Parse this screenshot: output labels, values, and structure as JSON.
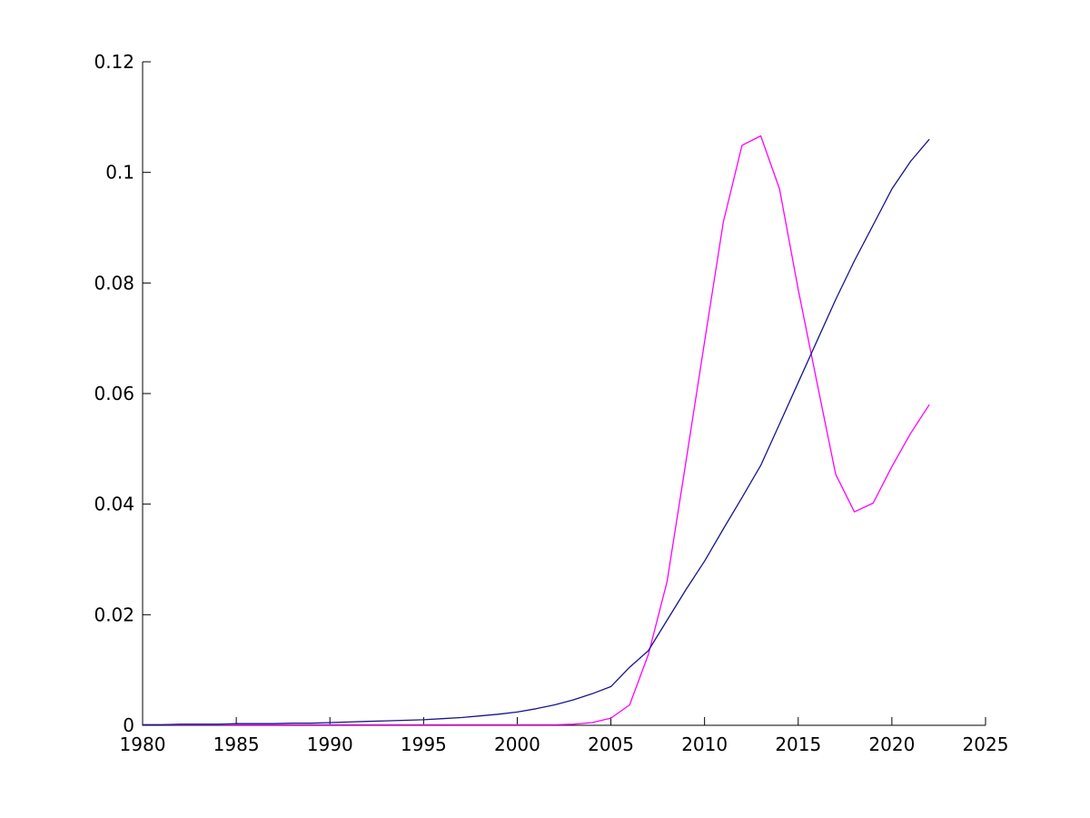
{
  "chart_data": {
    "type": "line",
    "title": "",
    "xlabel": "",
    "ylabel": "",
    "xlim": [
      1980,
      2025
    ],
    "ylim": [
      0,
      0.12
    ],
    "grid": false,
    "legend": "none",
    "box": "off",
    "axis_color": "#000000",
    "background_color": "#ffffff",
    "x_ticks": [
      1980,
      1985,
      1990,
      1995,
      2000,
      2005,
      2010,
      2015,
      2020,
      2025
    ],
    "x_tick_labels": [
      "1980",
      "1985",
      "1990",
      "1995",
      "2000",
      "2005",
      "2010",
      "2015",
      "2020",
      "2025"
    ],
    "y_ticks": [
      0,
      0.02,
      0.04,
      0.06,
      0.08,
      0.1,
      0.12
    ],
    "y_tick_labels": [
      "0",
      "0.02",
      "0.04",
      "0.06",
      "0.08",
      "0.1",
      "0.12"
    ],
    "x": [
      1980,
      1981,
      1982,
      1983,
      1984,
      1985,
      1986,
      1987,
      1988,
      1989,
      1990,
      1991,
      1992,
      1993,
      1994,
      1995,
      1996,
      1997,
      1998,
      1999,
      2000,
      2001,
      2002,
      2003,
      2004,
      2005,
      2006,
      2007,
      2008,
      2009,
      2010,
      2011,
      2012,
      2013,
      2014,
      2015,
      2016,
      2017,
      2018,
      2019,
      2020,
      2021,
      2022
    ],
    "series": [
      {
        "name": "magenta-curve",
        "color": "#FF00FF",
        "values": [
          0.0001,
          0.0001,
          0.0001,
          0.0001,
          0.0001,
          0.0001,
          0.0001,
          0.0001,
          0.0001,
          0.0001,
          0.0001,
          0.0001,
          0.0001,
          0.0001,
          0.0001,
          0.0001,
          0.0001,
          0.0001,
          0.0001,
          0.0001,
          0.0001,
          0.0001,
          0.0001,
          0.0002,
          0.0005,
          0.0013,
          0.0037,
          0.0128,
          0.026,
          0.0475,
          0.0694,
          0.091,
          0.1049,
          0.1066,
          0.097,
          0.0788,
          0.062,
          0.0454,
          0.0386,
          0.0402,
          0.0468,
          0.0528,
          0.058
        ]
      },
      {
        "name": "dark-blue-curve",
        "color": "#16168C",
        "values": [
          0.0001,
          0.0001,
          0.0002,
          0.0002,
          0.0002,
          0.0003,
          0.0003,
          0.0003,
          0.0004,
          0.0004,
          0.0005,
          0.0006,
          0.0007,
          0.0008,
          0.0009,
          0.001,
          0.0012,
          0.0014,
          0.0017,
          0.002,
          0.0024,
          0.003,
          0.0037,
          0.0046,
          0.0057,
          0.007,
          0.0105,
          0.0135,
          0.019,
          0.0245,
          0.0297,
          0.0355,
          0.0412,
          0.047,
          0.0545,
          0.062,
          0.0695,
          0.077,
          0.084,
          0.0905,
          0.097,
          0.102,
          0.106
        ]
      }
    ]
  }
}
